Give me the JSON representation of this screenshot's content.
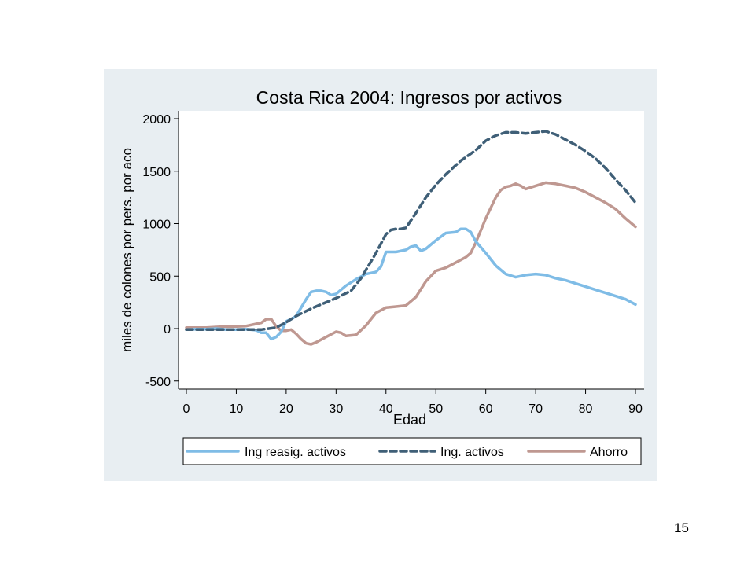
{
  "page_number": "15",
  "colors": {
    "panel_bg": "#e8eef2",
    "plot_bg": "#ffffff",
    "ing_reasig": "#7fbce6",
    "ing_activos": "#3f5f77",
    "ahorro": "#bf9891"
  },
  "chart_data": {
    "type": "line",
    "title": "Costa Rica 2004: Ingresos por activos",
    "xlabel": "Edad",
    "ylabel": "miles de colones por pers. por aco",
    "xlim": [
      0,
      90
    ],
    "ylim": [
      -500,
      2000
    ],
    "xticks": [
      0,
      10,
      20,
      30,
      40,
      50,
      60,
      70,
      80,
      90
    ],
    "yticks": [
      2000,
      1500,
      1000,
      500,
      0,
      -500
    ],
    "grid": false,
    "legend": "bottom",
    "series": [
      {
        "name": "Ing reasig. activos",
        "style": "solid",
        "x": [
          0,
          2,
          4,
          6,
          8,
          10,
          12,
          14,
          15,
          16,
          17,
          18,
          19,
          20,
          21,
          22,
          23,
          24,
          25,
          26,
          27,
          28,
          29,
          30,
          32,
          34,
          36,
          38,
          39,
          40,
          42,
          44,
          45,
          46,
          47,
          48,
          50,
          52,
          54,
          55,
          56,
          57,
          58,
          60,
          62,
          64,
          66,
          68,
          70,
          72,
          74,
          76,
          78,
          80,
          82,
          84,
          86,
          88,
          90
        ],
        "y": [
          -10,
          -5,
          -5,
          0,
          -10,
          -10,
          -5,
          -15,
          -40,
          -40,
          -100,
          -80,
          -30,
          70,
          90,
          120,
          200,
          280,
          350,
          360,
          360,
          350,
          320,
          330,
          410,
          470,
          520,
          540,
          590,
          730,
          730,
          750,
          780,
          790,
          740,
          760,
          840,
          910,
          920,
          950,
          950,
          920,
          830,
          720,
          600,
          520,
          490,
          510,
          520,
          510,
          480,
          460,
          430,
          400,
          370,
          340,
          310,
          280,
          230
        ]
      },
      {
        "name": "Ing. activos",
        "style": "dashed",
        "x": [
          0,
          5,
          10,
          15,
          18,
          20,
          22,
          25,
          28,
          30,
          33,
          35,
          38,
          40,
          41,
          42,
          43,
          44,
          46,
          48,
          50,
          52,
          55,
          58,
          60,
          62,
          64,
          66,
          68,
          70,
          72,
          74,
          76,
          78,
          80,
          82,
          84,
          86,
          88,
          90
        ],
        "y": [
          -10,
          -10,
          -10,
          -10,
          10,
          60,
          120,
          190,
          250,
          290,
          360,
          480,
          720,
          900,
          940,
          950,
          950,
          960,
          1100,
          1250,
          1370,
          1470,
          1600,
          1700,
          1790,
          1840,
          1870,
          1870,
          1860,
          1870,
          1880,
          1850,
          1800,
          1750,
          1690,
          1620,
          1530,
          1420,
          1320,
          1200
        ]
      },
      {
        "name": "Ahorro",
        "style": "solid",
        "x": [
          0,
          2,
          4,
          6,
          8,
          10,
          12,
          14,
          15,
          16,
          17,
          18,
          19,
          20,
          21,
          22,
          23,
          24,
          25,
          26,
          28,
          30,
          31,
          32,
          34,
          36,
          38,
          40,
          42,
          44,
          46,
          48,
          50,
          52,
          54,
          56,
          57,
          58,
          60,
          62,
          63,
          64,
          65,
          66,
          67,
          68,
          70,
          72,
          74,
          76,
          78,
          80,
          82,
          84,
          86,
          88,
          90
        ],
        "y": [
          10,
          10,
          10,
          15,
          20,
          20,
          25,
          45,
          55,
          90,
          90,
          20,
          -20,
          -20,
          -10,
          -50,
          -100,
          -140,
          -150,
          -130,
          -80,
          -30,
          -40,
          -70,
          -60,
          30,
          150,
          200,
          210,
          220,
          300,
          450,
          550,
          580,
          630,
          680,
          720,
          820,
          1050,
          1250,
          1320,
          1350,
          1360,
          1380,
          1360,
          1330,
          1360,
          1390,
          1380,
          1360,
          1340,
          1300,
          1250,
          1200,
          1140,
          1050,
          970
        ]
      }
    ]
  }
}
